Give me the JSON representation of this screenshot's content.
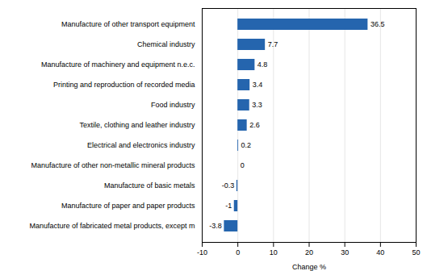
{
  "chart_data": {
    "type": "bar",
    "orientation": "horizontal",
    "categories": [
      "Manufacture of fabricated metal products, except m",
      "Manufacture of paper and paper products",
      "Manufacture of basic metals",
      "Manufacture of other non-metallic mineral products",
      "Electrical and electronics industry",
      "Textile, clothing and leather industry",
      "Food industry",
      "Printing and reproduction of recorded media",
      "Manufacture of machinery and equipment n.e.c.",
      "Chemical industry",
      "Manufacture of other transport equipment"
    ],
    "values": [
      -3.8,
      -1,
      -0.3,
      0,
      0.2,
      2.6,
      3.3,
      3.4,
      4.8,
      7.7,
      36.5
    ],
    "color": "#2565AE",
    "xlabel": "Change %",
    "xlim": [
      -10,
      50
    ],
    "xticks": [
      -10,
      0,
      10,
      20,
      30,
      40,
      50
    ],
    "grid": true,
    "data_labels": true
  }
}
